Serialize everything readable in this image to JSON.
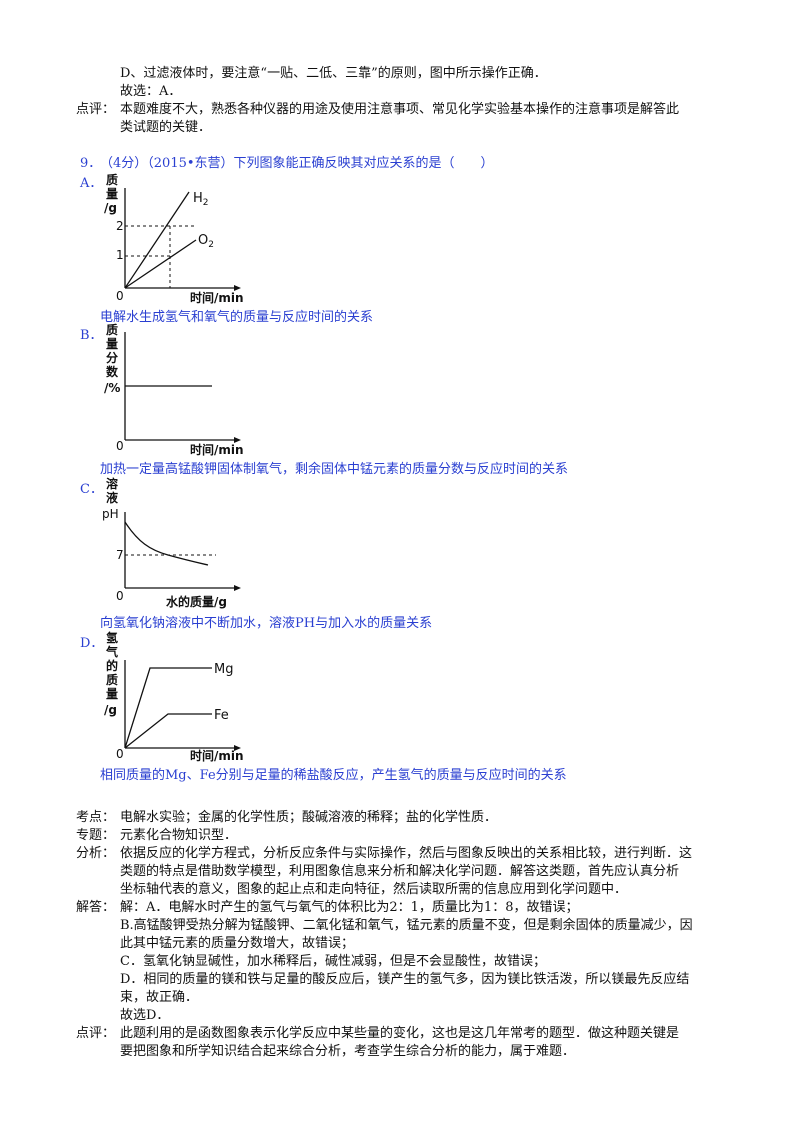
{
  "prev_answer": {
    "line_d": "D、过滤液体时，要注意“一贴、二低、三靠”的原则，图中所示操作正确．",
    "choice": "故选：A．",
    "comment_label": "点评：",
    "comment_1": "本题难度不大，熟悉各种仪器的用途及使用注意事项、常见化学实验基本操作的注意事项是解答此",
    "comment_2": "类试题的关键．"
  },
  "question": {
    "number": "9．",
    "stem": "（4分）（2015•东营）下列图象能正确反映其对应关系的是（　　）",
    "options": [
      {
        "letter": "A．",
        "caption": "电解水生成氢气和氧气的质量与反应时间的关系",
        "y_label": [
          "质",
          "量",
          "/g"
        ],
        "x_label": "时间/min",
        "origin": "0",
        "y_ticks": [
          "2",
          "1"
        ],
        "series": [
          "H2",
          "O2"
        ]
      },
      {
        "letter": "B．",
        "caption": "加热一定量高锰酸钾固体制氧气，剩余固体中锰元素的质量分数与反应时间的关系",
        "y_label": [
          "质",
          "量",
          "分",
          "数",
          "/%"
        ],
        "x_label": "时间/min",
        "origin": "0"
      },
      {
        "letter": "C．",
        "caption": "向氢氧化钠溶液中不断加水，溶液PH与加入水的质量关系",
        "y_label": [
          "溶",
          "液",
          "pH"
        ],
        "x_label": "水的质量/g",
        "origin": "0",
        "y_ticks": [
          "7"
        ]
      },
      {
        "letter": "D．",
        "caption": "相同质量的Mg、Fe分别与足量的稀盐酸反应，产生氢气的质量与反应时间的关系",
        "y_label": [
          "氢",
          "气",
          "的",
          "质",
          "量",
          "/g"
        ],
        "x_label": "时间/min",
        "origin": "0",
        "series": [
          "Mg",
          "Fe"
        ]
      }
    ]
  },
  "analysis": {
    "kaodian_label": "考点：",
    "kaodian": "电解水实验；金属的化学性质；酸碱溶液的稀释；盐的化学性质．",
    "zhuanti_label": "专题：",
    "zhuanti": "元素化合物知识型．",
    "fenxi_label": "分析：",
    "fenxi": [
      "依据反应的化学方程式，分析反应条件与实际操作，然后与图象反映出的关系相比较，进行判断．这",
      "类题的特点是借助数学模型，利用图象信息来分析和解决化学问题．解答这类题，首先应认真分析",
      "坐标轴代表的意义，图象的起止点和走向特征，然后读取所需的信息应用到化学问题中．"
    ],
    "jieda_label": "解答：",
    "jieda": [
      "解：A．电解水时产生的氢气与氧气的体积比为2：1，质量比为1：8，故错误；",
      "B.高锰酸钾受热分解为锰酸钾、二氧化锰和氧气，锰元素的质量不变，但是剩余固体的质量减少，因",
      "此其中锰元素的质量分数增大，故错误；",
      "C．氢氧化钠显碱性，加水稀释后，碱性减弱，但是不会显酸性，故错误；",
      "D．相同的质量的镁和铁与足量的酸反应后，镁产生的氢气多，因为镁比铁活泼，所以镁最先反应结",
      "束，故正确．",
      "故选D．"
    ],
    "dianping_label": "点评：",
    "dianping": [
      "此题利用的是函数图象表示化学反应中某些量的变化，这也是这几年常考的题型．做这种题关键是",
      "要把图象和所学知识结合起来综合分析，考查学生综合分析的能力，属于难题．"
    ]
  }
}
